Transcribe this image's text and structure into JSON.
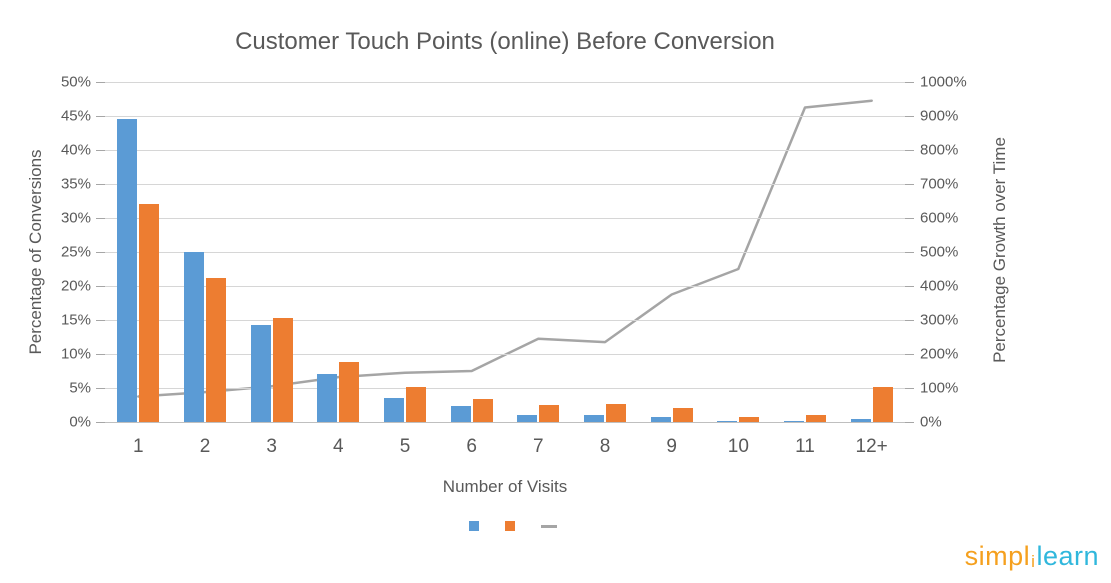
{
  "chart_data": {
    "type": "bar",
    "subtype": "combo-bar-line",
    "title": "Customer Touch Points (online) Before Conversion",
    "xlabel": "Number of Visits",
    "ylabel_left": "Percentage of Conversions",
    "ylabel_right": "Percentage Growth over Time",
    "categories": [
      "1",
      "2",
      "3",
      "4",
      "5",
      "6",
      "7",
      "8",
      "9",
      "10",
      "11",
      "12+"
    ],
    "series": [
      {
        "name": "conversions-blue-bars",
        "type": "bar",
        "axis": "left",
        "color": "#5B9BD5",
        "values": [
          44.5,
          25,
          14.3,
          7.1,
          3.5,
          2.3,
          1.1,
          1.1,
          0.7,
          0.1,
          0.1,
          0.5
        ]
      },
      {
        "name": "conversions-orange-bars",
        "type": "bar",
        "axis": "left",
        "color": "#ED7D31",
        "values": [
          32,
          21.2,
          15.3,
          8.8,
          5.1,
          3.4,
          2.5,
          2.7,
          2.1,
          0.7,
          1.0,
          5.2
        ]
      },
      {
        "name": "growth-line",
        "type": "line",
        "axis": "right",
        "color": "#A5A5A5",
        "values": [
          75,
          88,
          105,
          132,
          145,
          150,
          245,
          235,
          375,
          450,
          925,
          945
        ]
      }
    ],
    "left_axis": {
      "min": 0,
      "max": 50,
      "step": 5,
      "tick_labels": [
        "0%",
        "5%",
        "10%",
        "15%",
        "20%",
        "25%",
        "30%",
        "35%",
        "40%",
        "45%",
        "50%"
      ]
    },
    "right_axis": {
      "min": 0,
      "max": 1000,
      "step": 100,
      "tick_labels": [
        "0%",
        "100%",
        "200%",
        "300%",
        "400%",
        "500%",
        "600%",
        "700%",
        "800%",
        "900%",
        "1000%"
      ]
    },
    "grid": true,
    "legend_position": "bottom",
    "legend": [
      {
        "marker": "square",
        "color": "#5B9BD5",
        "label": ""
      },
      {
        "marker": "square",
        "color": "#ED7D31",
        "label": ""
      },
      {
        "marker": "dash",
        "color": "#A5A5A5",
        "label": ""
      }
    ]
  },
  "logo": {
    "part_simpl": "simpl",
    "part_i": "i",
    "part_learn": "learn",
    "color_orange": "#F5A01E",
    "color_teal": "#30B7DC"
  }
}
